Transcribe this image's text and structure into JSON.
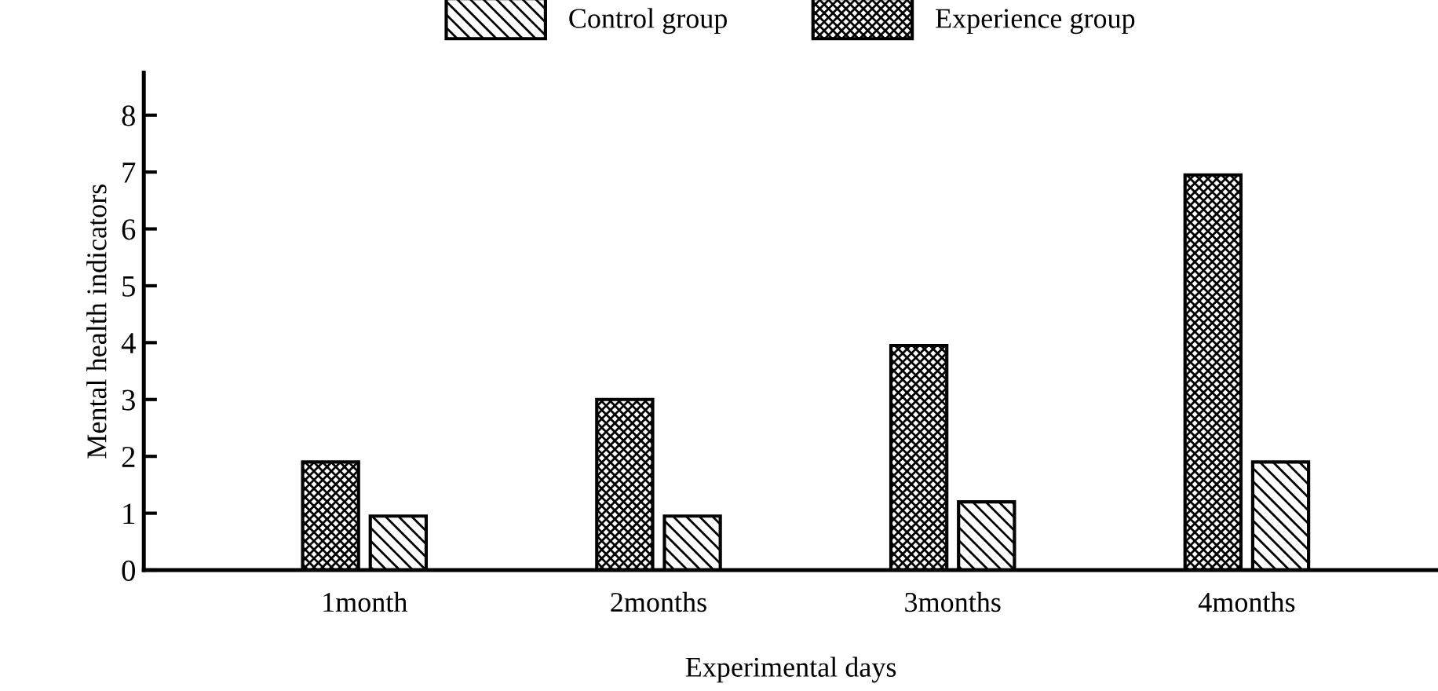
{
  "chart_data": {
    "type": "bar",
    "xlabel": "Experimental days",
    "ylabel": "Mental health indicators",
    "categories": [
      "1month",
      "2months",
      "3months",
      "4months"
    ],
    "series": [
      {
        "name": "Experience group",
        "color": "#000000",
        "values": [
          1.9,
          3.0,
          3.95,
          6.95
        ]
      },
      {
        "name": "Control group",
        "color": "#000000",
        "values": [
          0.95,
          0.95,
          1.2,
          1.9
        ]
      }
    ],
    "ylim": [
      0,
      8.75
    ],
    "yticks": [
      0,
      1,
      2,
      3,
      4,
      5,
      6,
      7,
      8
    ],
    "grid": false,
    "legend": "top"
  }
}
